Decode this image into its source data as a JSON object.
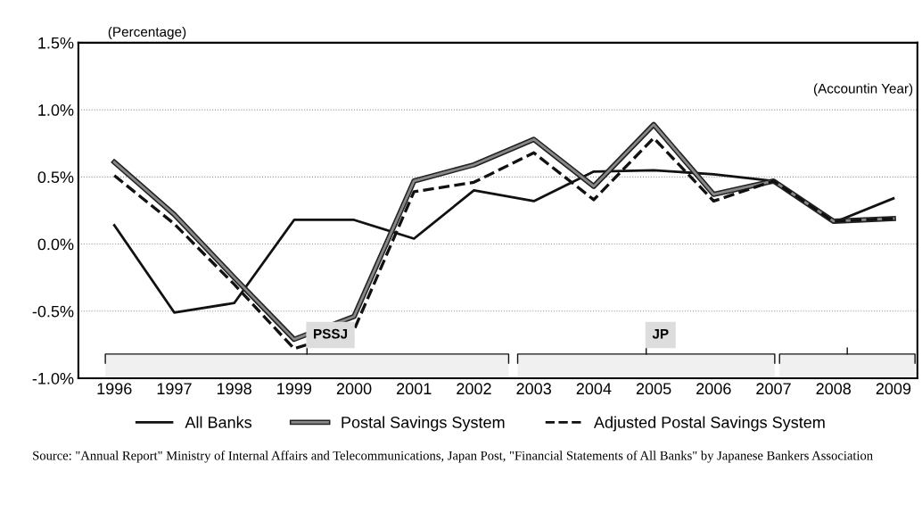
{
  "chart_data": {
    "type": "line",
    "ylabel": "(Percentage)",
    "xlabel": "(Accountin Year)",
    "x": [
      1996,
      1997,
      1998,
      1999,
      2000,
      2001,
      2002,
      2003,
      2004,
      2005,
      2006,
      2007,
      2008,
      2009
    ],
    "xlim": [
      1995.4,
      2009.4
    ],
    "xticks": [
      1996,
      1997,
      1998,
      1999,
      2000,
      2001,
      2002,
      2003,
      2004,
      2005,
      2006,
      2007,
      2008,
      2009
    ],
    "ylim": [
      -1.0,
      1.5
    ],
    "yticks": [
      {
        "value": -1.0,
        "label": "-1.0%"
      },
      {
        "value": -0.5,
        "label": "-0.5%"
      },
      {
        "value": 0.0,
        "label": "0.0%"
      },
      {
        "value": 0.5,
        "label": "0.5%"
      },
      {
        "value": 1.0,
        "label": "1.0%"
      },
      {
        "value": 1.5,
        "label": "1.5%"
      }
    ],
    "grid": "y",
    "legend": "bottom",
    "marker": "none",
    "series": [
      {
        "name": "All Banks",
        "color": "#111111",
        "line_style": "solid",
        "values": [
          0.14,
          -0.51,
          -0.44,
          0.18,
          0.18,
          0.04,
          0.4,
          0.32,
          0.54,
          0.55,
          0.52,
          0.47,
          0.16,
          0.34
        ]
      },
      {
        "name": "Postal Savings System",
        "color": "#888888",
        "line_style": "solid",
        "values": [
          0.61,
          0.22,
          -0.25,
          -0.71,
          -0.54,
          0.47,
          0.59,
          0.78,
          0.43,
          0.89,
          0.37,
          0.47,
          0.17,
          0.19
        ]
      },
      {
        "name": "Adjusted Postal Savings System",
        "color": "#111111",
        "line_style": "dashed",
        "values": [
          0.51,
          0.15,
          -0.3,
          -0.78,
          -0.64,
          0.39,
          0.46,
          0.68,
          0.33,
          0.79,
          0.32,
          0.47,
          0.17,
          0.19
        ]
      }
    ],
    "bands": [
      {
        "axis": "x",
        "from": 1995.85,
        "to": 2002.58,
        "label": "PSSJ",
        "color": "#f0f0f0"
      },
      {
        "axis": "x",
        "from": 2002.73,
        "to": 2007.02,
        "label": "JP",
        "color": "#f0f0f0"
      },
      {
        "axis": "x",
        "from": 2007.1,
        "to": 2009.36,
        "color": "#f0f0f0"
      }
    ],
    "annotations": [
      "Source: \"Annual Report\" Ministry of Internal Affairs and Telecommunications, Japan Post, \"Financial Statements of All Banks\" by Japanese Bankers Association"
    ]
  }
}
